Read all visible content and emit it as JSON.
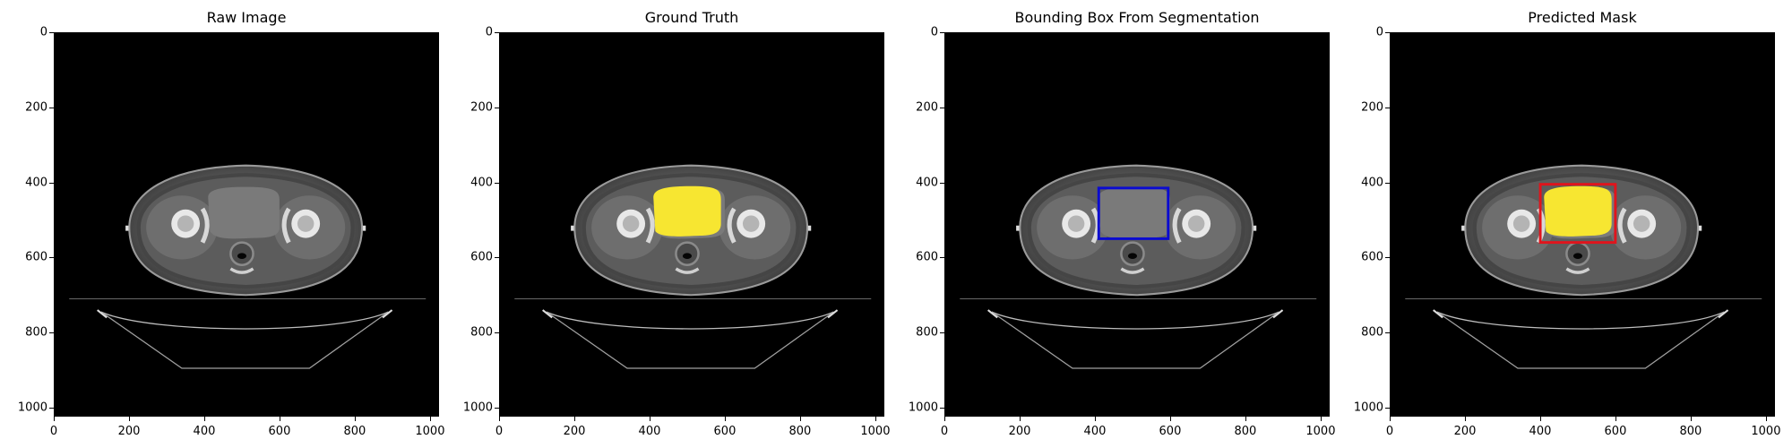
{
  "panels": [
    {
      "title": "Raw Image",
      "overlay": "none"
    },
    {
      "title": "Ground Truth",
      "overlay": "mask"
    },
    {
      "title": "Bounding Box From Segmentation",
      "overlay": "gt_box"
    },
    {
      "title": "Predicted Mask",
      "overlay": "pred_mask_box"
    }
  ],
  "axis": {
    "x_ticks": [
      "0",
      "200",
      "400",
      "600",
      "800",
      "1000"
    ],
    "y_ticks": [
      "0",
      "200",
      "400",
      "600",
      "800",
      "1000"
    ],
    "xlim": [
      0,
      1024
    ],
    "ylim": [
      1024,
      0
    ]
  },
  "image_extent": [
    0,
    1024
  ],
  "overlays": {
    "mask_color": "#f7e631",
    "gt_box_color": "#0b0bd0",
    "pred_box_color": "#e0141c",
    "gt_box": [
      410,
      415,
      595,
      550
    ],
    "pred_box": [
      400,
      405,
      600,
      560
    ]
  }
}
